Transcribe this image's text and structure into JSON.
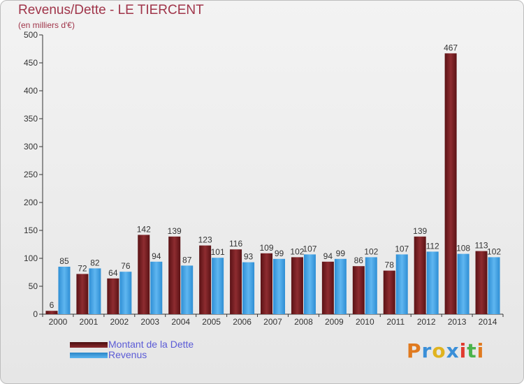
{
  "title": "Revenus/Dette - LE TIERCENT",
  "subtitle": "(en milliers d'€)",
  "colors": {
    "debt": "#7a1f22",
    "revenue": "#3d9de0",
    "title": "#a0354a",
    "legend": "#5b5bd6"
  },
  "logo": {
    "text": "Proxiti"
  },
  "chart_data": {
    "type": "bar",
    "title": "Revenus/Dette - LE TIERCENT",
    "ylabel": "(en milliers d'€)",
    "xlabel": "",
    "ylim": [
      0,
      500
    ],
    "yticks": [
      0,
      50,
      100,
      150,
      200,
      250,
      300,
      350,
      400,
      450,
      500
    ],
    "grid": false,
    "legend_position": "bottom-left",
    "categories": [
      "2000",
      "2001",
      "2002",
      "2003",
      "2004",
      "2005",
      "2006",
      "2007",
      "2008",
      "2009",
      "2010",
      "2011",
      "2012",
      "2013",
      "2014"
    ],
    "series": [
      {
        "name": "Montant de la Dette",
        "color": "#7a1f22",
        "values": [
          6,
          72,
          64,
          142,
          139,
          123,
          116,
          109,
          102,
          94,
          86,
          78,
          139,
          467,
          113
        ]
      },
      {
        "name": "Revenus",
        "color": "#3d9de0",
        "values": [
          85,
          82,
          76,
          94,
          87,
          101,
          93,
          99,
          107,
          99,
          102,
          107,
          112,
          108,
          102
        ]
      }
    ]
  }
}
